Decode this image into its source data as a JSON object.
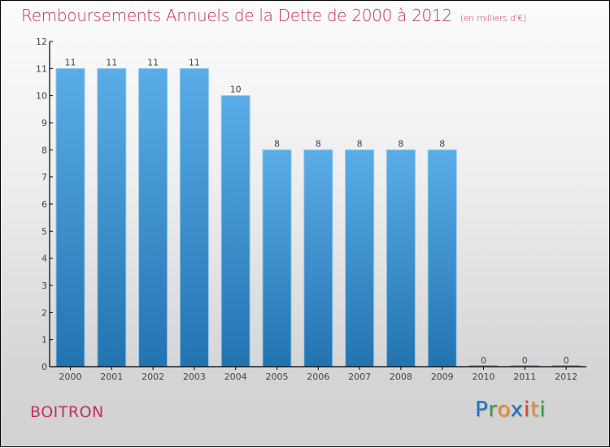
{
  "chart_data": {
    "type": "bar",
    "title": "Remboursements Annuels de la Dette de 2000 à 2012",
    "unit_note": "(en milliers d'€)",
    "xlabel": "",
    "ylabel": "",
    "categories": [
      "2000",
      "2001",
      "2002",
      "2003",
      "2004",
      "2005",
      "2006",
      "2007",
      "2008",
      "2009",
      "2010",
      "2011",
      "2012"
    ],
    "values": [
      11,
      11,
      11,
      11,
      10,
      8,
      8,
      8,
      8,
      8,
      0,
      0,
      0
    ],
    "ylim": [
      0,
      12
    ],
    "yticks": [
      0,
      1,
      2,
      3,
      4,
      5,
      6,
      7,
      8,
      9,
      10,
      11,
      12
    ],
    "grid": false,
    "bar_color_top": "#5aade6",
    "bar_color_bottom": "#2373b0"
  },
  "header": {
    "title": "Remboursements Annuels de la Dette de 2000 à 2012",
    "unit": "(en milliers d'€)"
  },
  "footer": {
    "commune": "BOITRON",
    "logo": {
      "letters": [
        {
          "ch": "P",
          "color": "#1a73c9"
        },
        {
          "ch": "r",
          "color": "#3aa03a"
        },
        {
          "ch": "o",
          "color": "#f08a1c"
        },
        {
          "ch": "x",
          "color": "#1a73c9"
        },
        {
          "ch": "i",
          "color": "#e03a2a"
        },
        {
          "ch": "t",
          "color": "#f08a1c"
        },
        {
          "ch": "i",
          "color": "#3aa03a"
        }
      ]
    }
  },
  "colors": {
    "title": "#c0305f",
    "text": "#444444"
  }
}
